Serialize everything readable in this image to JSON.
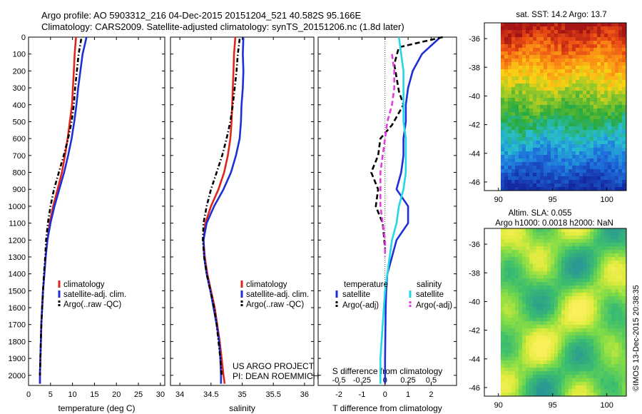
{
  "header": {
    "line1": "Argo profile: AO 5903312_216 04-Dec-2015 20151204_521 40.582S 95.166E",
    "line2": "Climatology: CARS2009. Satellite-adjusted climatology: synTS_20151206.nc (1.8d later)"
  },
  "footer": {
    "project": "US ARGO PROJECT",
    "pi": "PI: DEAN ROEMMICH",
    "stamp": "©IMOS 13-Dec-2015 20:38:35"
  },
  "colors": {
    "climatology": "#e0261b",
    "satellite": "#1f2fd6",
    "argo": "#000000",
    "sal_satellite": "#22d8e6",
    "sal_argo": "#e23be0"
  },
  "chart_data": [
    {
      "type": "line",
      "name": "temperature-profile",
      "xlabel": "temperature (deg C)",
      "ylabel": "",
      "xlim": [
        0,
        31
      ],
      "ylim": [
        0,
        2060
      ],
      "y_reversed": true,
      "xticks": [
        0,
        5,
        10,
        15,
        20,
        25,
        30
      ],
      "yticks": [
        0,
        100,
        200,
        300,
        400,
        500,
        600,
        700,
        800,
        900,
        1000,
        1100,
        1200,
        1300,
        1400,
        1500,
        1600,
        1700,
        1800,
        1900,
        2000
      ],
      "legend": [
        "climatology",
        "satellite-adj. clim.",
        "Argo(..raw -QC)"
      ],
      "series": [
        {
          "name": "climatology",
          "color": "climatology",
          "style": "solid",
          "x": [
            10.8,
            10.5,
            10.3,
            10.1,
            9.9,
            9.4,
            8.9,
            8.3,
            7.6,
            6.6,
            5.6,
            4.8,
            4.3,
            3.9,
            3.6,
            3.3,
            3.1,
            2.9,
            2.8,
            2.7,
            2.6,
            2.6
          ],
          "y": [
            0,
            100,
            200,
            300,
            400,
            500,
            600,
            700,
            800,
            900,
            1000,
            1100,
            1200,
            1300,
            1400,
            1500,
            1600,
            1700,
            1800,
            1900,
            2000,
            2050
          ]
        },
        {
          "name": "satellite-adj. clim.",
          "color": "satellite",
          "style": "solid",
          "x": [
            13.2,
            12.3,
            11.8,
            11.3,
            10.9,
            10.4,
            9.8,
            9.0,
            8.1,
            7.0,
            5.9,
            5.0,
            4.3,
            3.9,
            3.6,
            3.3,
            3.1,
            2.9,
            2.8,
            2.7,
            2.6,
            2.6
          ],
          "y": [
            0,
            100,
            200,
            300,
            400,
            500,
            600,
            700,
            800,
            900,
            1000,
            1100,
            1200,
            1300,
            1400,
            1500,
            1600,
            1700,
            1800,
            1900,
            2000,
            2050
          ]
        },
        {
          "name": "Argo(..raw -QC)",
          "color": "argo",
          "style": "dashdot",
          "x": [
            12.0,
            11.4,
            11.0,
            10.6,
            10.3,
            9.8,
            9.0,
            8.0,
            6.9,
            5.8,
            5.0,
            4.4,
            4.0,
            3.8,
            3.5,
            3.3,
            3.1,
            2.9,
            2.8,
            2.7,
            2.6
          ],
          "y": [
            10,
            100,
            200,
            300,
            400,
            500,
            600,
            700,
            800,
            900,
            1000,
            1100,
            1200,
            1300,
            1400,
            1500,
            1600,
            1700,
            1800,
            1900,
            2000
          ]
        }
      ]
    },
    {
      "type": "line",
      "name": "salinity-profile",
      "xlabel": "salinity",
      "xlim": [
        33.85,
        36.15
      ],
      "ylim": [
        0,
        2060
      ],
      "y_reversed": true,
      "xticks": [
        34,
        34.5,
        35,
        35.5,
        36
      ],
      "legend": [
        "climatology",
        "satellite-adj. clim.",
        "Argo(..raw -QC)"
      ],
      "series": [
        {
          "name": "climatology",
          "color": "climatology",
          "style": "solid",
          "x": [
            34.89,
            34.87,
            34.86,
            34.85,
            34.84,
            34.83,
            34.81,
            34.77,
            34.71,
            34.62,
            34.5,
            34.41,
            34.38,
            34.4,
            34.44,
            34.5,
            34.56,
            34.6,
            34.64,
            34.67,
            34.7,
            34.72
          ],
          "y": [
            0,
            100,
            200,
            300,
            400,
            500,
            600,
            700,
            800,
            900,
            1000,
            1100,
            1200,
            1300,
            1400,
            1500,
            1600,
            1700,
            1800,
            1900,
            2000,
            2050
          ]
        },
        {
          "name": "satellite-adj. clim.",
          "color": "satellite",
          "style": "solid",
          "x": [
            35.02,
            35.01,
            35.02,
            35.01,
            34.99,
            34.98,
            34.96,
            34.9,
            34.82,
            34.7,
            34.55,
            34.43,
            34.38,
            34.39,
            34.43,
            34.49,
            34.54,
            34.59,
            34.63,
            34.65,
            34.66,
            34.66
          ],
          "y": [
            0,
            100,
            200,
            300,
            400,
            500,
            600,
            700,
            800,
            900,
            1000,
            1100,
            1200,
            1300,
            1400,
            1500,
            1600,
            1700,
            1800,
            1900,
            2000,
            2050
          ]
        },
        {
          "name": "Argo(..raw -QC)",
          "color": "argo",
          "style": "dashdot",
          "x": [
            34.96,
            34.93,
            34.91,
            34.88,
            34.85,
            34.81,
            34.75,
            34.68,
            34.59,
            34.5,
            34.43,
            34.38,
            34.37,
            34.39,
            34.43,
            34.49,
            34.55,
            34.59,
            34.62,
            34.65,
            34.67
          ],
          "y": [
            10,
            100,
            200,
            300,
            400,
            500,
            600,
            700,
            800,
            900,
            1000,
            1100,
            1200,
            1300,
            1400,
            1500,
            1600,
            1700,
            1800,
            1900,
            2000
          ]
        }
      ]
    },
    {
      "type": "line",
      "name": "difference-profile",
      "xlabel": "T difference from climatology",
      "xlabel2": "S difference from climatology",
      "xlim": [
        -2.9,
        3.1
      ],
      "ylim": [
        0,
        2060
      ],
      "y_reversed": true,
      "xticks": [
        -2,
        -1,
        0,
        1,
        2
      ],
      "xticks2": [
        "-0.5",
        "-0.25",
        "0",
        "0.25",
        "0.5"
      ],
      "xticks2_pos": [
        -2,
        -1,
        0,
        1,
        2
      ],
      "legend_headers": [
        "temperature",
        "salinity"
      ],
      "legend": [
        "satellite",
        "Argo(-adj)",
        "satellite",
        "Argo(-adj)"
      ],
      "series": [
        {
          "name": "satellite",
          "group": "temperature",
          "color": "satellite",
          "style": "solid",
          "x": [
            2.4,
            1.6,
            1.2,
            1.0,
            0.9,
            0.9,
            0.8,
            0.8,
            0.7,
            0.5,
            1.0,
            1.0,
            0.5,
            0.3,
            0.1,
            0.05,
            0.03,
            0.02,
            0.01,
            0.0,
            0.0,
            0.0
          ],
          "y": [
            0,
            100,
            200,
            300,
            400,
            500,
            600,
            700,
            800,
            900,
            1000,
            1100,
            1200,
            1300,
            1400,
            1500,
            1600,
            1700,
            1800,
            1900,
            2000,
            2050
          ]
        },
        {
          "name": "Argo(-adj)",
          "group": "temperature",
          "color": "argo",
          "style": "dashed",
          "x": [
            2.5,
            0.6,
            0.4,
            0.6,
            0.8,
            0.3,
            -0.2,
            -0.3,
            -0.6,
            -0.3,
            -0.4,
            -0.1,
            0.0
          ],
          "y": [
            0,
            60,
            160,
            320,
            400,
            520,
            600,
            700,
            800,
            900,
            1000,
            1100,
            1250
          ]
        },
        {
          "name": "satellite",
          "group": "salinity",
          "color": "sal_satellite",
          "style": "solid",
          "x": [
            0.6,
            0.7,
            0.8,
            0.8,
            0.8,
            0.8,
            0.9,
            0.9,
            0.9,
            0.8,
            0.6,
            0.5,
            0.3,
            0.2,
            0.1,
            0.0,
            -0.05,
            -0.1,
            -0.15,
            -0.2,
            -0.2,
            -0.2
          ],
          "y": [
            0,
            100,
            200,
            300,
            400,
            500,
            600,
            700,
            800,
            900,
            1000,
            1100,
            1200,
            1300,
            1400,
            1500,
            1600,
            1700,
            1800,
            1900,
            2000,
            2050
          ]
        },
        {
          "name": "Argo(-adj)",
          "group": "salinity",
          "color": "sal_argo",
          "style": "dashed",
          "x": [
            0.3,
            0.4,
            0.4,
            0.3,
            0.1,
            0.0,
            -0.1,
            -0.2,
            -0.2,
            -0.2,
            -0.1,
            0.0,
            0.0
          ],
          "y": [
            100,
            200,
            300,
            400,
            500,
            600,
            700,
            800,
            900,
            1000,
            1100,
            1200,
            1300
          ]
        }
      ]
    },
    {
      "type": "heatmap",
      "name": "sst-map",
      "title": "sat. SST: 14.2 Argo: 13.7",
      "xticks": [
        90,
        95,
        100
      ],
      "yticks": [
        -36,
        -38,
        -40,
        -42,
        -44,
        -46
      ],
      "xlim": [
        88.7,
        101.8
      ],
      "ylim": [
        -46.6,
        -34.9
      ]
    },
    {
      "type": "heatmap",
      "name": "sla-map",
      "title": "Altim. SLA: 0.055",
      "title2": "Argo h1000: 0.0018 h2000: NaN",
      "xticks": [
        90,
        95,
        100
      ],
      "yticks": [
        -36,
        -38,
        -40,
        -42,
        -44,
        -46
      ],
      "xlim": [
        88.7,
        101.8
      ],
      "ylim": [
        -46.6,
        -34.9
      ]
    }
  ]
}
